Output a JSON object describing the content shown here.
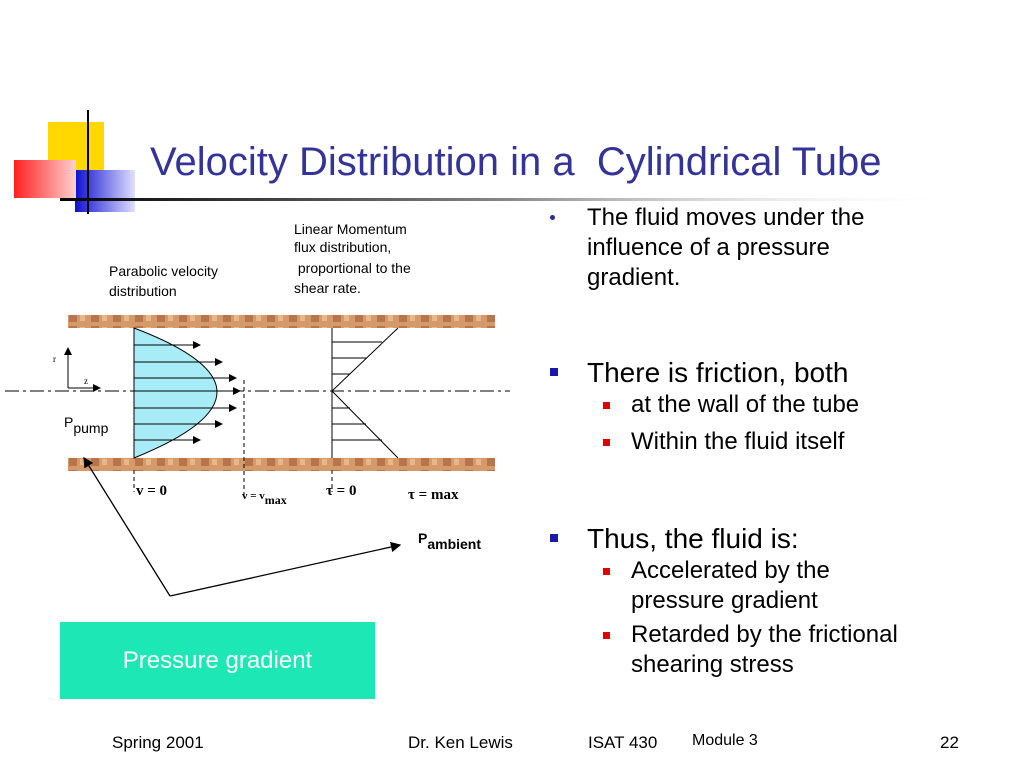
{
  "title": "Velocity Distribution in a  Cylindrical Tube",
  "bullets": [
    {
      "text": "The fluid moves under the influence of a pressure gradient."
    },
    {
      "text": "There is friction, both",
      "children": [
        "at the wall of the tube",
        "Within the fluid itself"
      ]
    },
    {
      "text": "Thus, the fluid is:",
      "children": [
        "Accelerated by the pressure gradient",
        "Retarded by the frictional shearing stress"
      ]
    }
  ],
  "diagram": {
    "momentum_label": [
      "Linear Momentum",
      "flux distribution,",
      " proportional to the",
      "shear rate."
    ],
    "velocity_label": [
      "Parabolic velocity",
      "distribution"
    ],
    "r_axis": "r",
    "z_axis": "z",
    "p_pump": {
      "symbol": "P",
      "subscript": "pump"
    },
    "v_zero": "v = 0",
    "v_max": {
      "main": "v = v",
      "subscript": "max"
    },
    "tau_zero": "τ = 0",
    "tau_max": "τ = max",
    "p_ambient": {
      "symbol": "P",
      "subscript": "ambient"
    }
  },
  "callout": "Pressure gradient",
  "footer": {
    "date": "Spring 2001",
    "author": "Dr. Ken Lewis",
    "course": "ISAT 430",
    "module": "Module 3",
    "page": "22"
  }
}
